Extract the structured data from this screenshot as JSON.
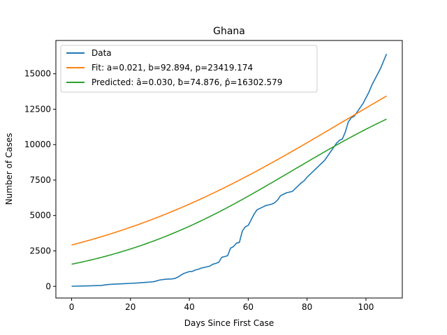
{
  "chart_data": {
    "type": "line",
    "title": "Ghana",
    "xlabel": "Days Since First Case",
    "ylabel": "Number of Cases",
    "xlim": [
      -5.35,
      112.35
    ],
    "ylim": [
      -825,
      17350
    ],
    "xticks": [
      0,
      20,
      40,
      60,
      80,
      100
    ],
    "yticks": [
      0,
      2500,
      5000,
      7500,
      10000,
      12500,
      15000
    ],
    "grid": false,
    "legend_position": "top-left",
    "series": [
      {
        "name": "Data",
        "color": "#1f77b4",
        "x": [
          0,
          5,
          10,
          12,
          14,
          16,
          18,
          20,
          22,
          24,
          26,
          28,
          30,
          32,
          34,
          35,
          36,
          38,
          40,
          41,
          42,
          43,
          44,
          45,
          46,
          47,
          48,
          49,
          50,
          51,
          52,
          53,
          54,
          55,
          56,
          57,
          58,
          59,
          60,
          61,
          62,
          63,
          64,
          65,
          66,
          67,
          68,
          69,
          70,
          71,
          72,
          73,
          74,
          75,
          76,
          77,
          78,
          79,
          80,
          81,
          82,
          83,
          84,
          85,
          86,
          87,
          88,
          89,
          90,
          91,
          92,
          93,
          94,
          95,
          96,
          97,
          98,
          99,
          100,
          101,
          102,
          103,
          104,
          105,
          106,
          107
        ],
        "y": [
          6,
          30,
          60,
          120,
          150,
          170,
          190,
          210,
          230,
          260,
          290,
          330,
          450,
          500,
          520,
          550,
          640,
          900,
          1040,
          1050,
          1150,
          1200,
          1280,
          1330,
          1380,
          1430,
          1560,
          1620,
          1700,
          2050,
          2100,
          2160,
          2700,
          2800,
          3050,
          3100,
          3900,
          4200,
          4300,
          4700,
          5100,
          5400,
          5500,
          5600,
          5700,
          5750,
          5800,
          5900,
          6100,
          6400,
          6500,
          6600,
          6650,
          6700,
          6900,
          7100,
          7300,
          7450,
          7700,
          7900,
          8100,
          8300,
          8500,
          8700,
          8900,
          9200,
          9500,
          9800,
          10100,
          10300,
          10400,
          10900,
          11600,
          11900,
          12000,
          12300,
          12600,
          12900,
          13300,
          13700,
          14200,
          14600,
          15000,
          15400,
          15900,
          16400
        ]
      },
      {
        "name": "Fit: a=0.021, b=92.894, p=23419.174",
        "color": "#ff7f0e",
        "model": "logistic",
        "params": {
          "a": 0.021,
          "b": 92.894,
          "p": 23419.174
        },
        "x_range": [
          0,
          107
        ]
      },
      {
        "name": "Predicted: â=0.030, ƀ=74.876, p̂=16302.579",
        "color": "#2ca02c",
        "model": "logistic",
        "params": {
          "a": 0.03,
          "b": 74.876,
          "p": 16302.579
        },
        "x_range": [
          0,
          107
        ]
      }
    ]
  }
}
